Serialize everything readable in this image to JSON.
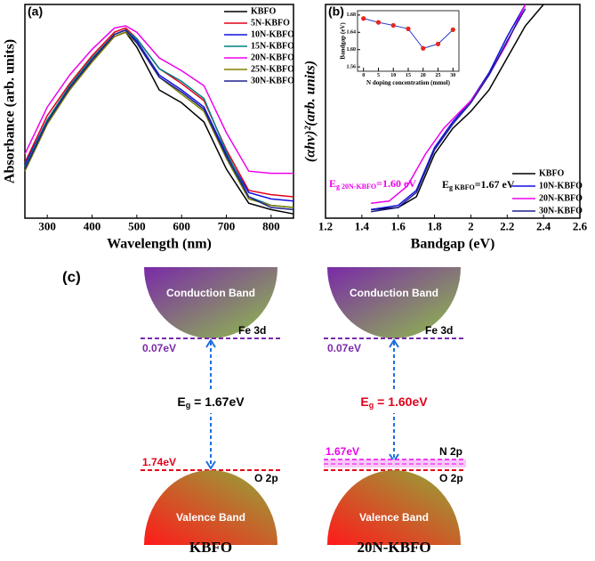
{
  "chart_data": [
    {
      "type": "line",
      "panel_label": "(a)",
      "xlabel": "Wavelength (nm)",
      "ylabel": "Absorbance (arb. units)",
      "xlim": [
        250,
        850
      ],
      "xticks": [
        300,
        400,
        500,
        600,
        700,
        800
      ],
      "ylim": [
        0,
        1
      ],
      "legend": "upper right",
      "x": [
        250,
        300,
        350,
        400,
        450,
        475,
        500,
        550,
        600,
        650,
        700,
        750,
        800,
        850
      ],
      "series": [
        {
          "name": "KBFO",
          "color": "#000000",
          "values": [
            0.23,
            0.45,
            0.6,
            0.74,
            0.85,
            0.87,
            0.8,
            0.6,
            0.54,
            0.45,
            0.23,
            0.07,
            0.04,
            0.02
          ]
        },
        {
          "name": "5N-KBFO",
          "color": "#e3001b",
          "values": [
            0.26,
            0.48,
            0.63,
            0.76,
            0.87,
            0.89,
            0.84,
            0.7,
            0.63,
            0.55,
            0.32,
            0.13,
            0.11,
            0.1
          ]
        },
        {
          "name": "10N-KBFO",
          "color": "#1010e0",
          "values": [
            0.25,
            0.46,
            0.61,
            0.74,
            0.86,
            0.88,
            0.83,
            0.67,
            0.6,
            0.52,
            0.3,
            0.12,
            0.09,
            0.08
          ]
        },
        {
          "name": "15N-KBFO",
          "color": "#008080",
          "values": [
            0.24,
            0.46,
            0.62,
            0.75,
            0.86,
            0.88,
            0.84,
            0.7,
            0.64,
            0.56,
            0.31,
            0.1,
            0.06,
            0.05
          ]
        },
        {
          "name": "20N-KBFO",
          "color": "#ee00ee",
          "values": [
            0.3,
            0.52,
            0.67,
            0.79,
            0.89,
            0.9,
            0.87,
            0.75,
            0.69,
            0.62,
            0.4,
            0.22,
            0.21,
            0.21
          ]
        },
        {
          "name": "25N-KBFO",
          "color": "#808000",
          "values": [
            0.22,
            0.44,
            0.6,
            0.73,
            0.85,
            0.87,
            0.82,
            0.66,
            0.58,
            0.5,
            0.28,
            0.09,
            0.06,
            0.05
          ]
        },
        {
          "name": "30N-KBFO",
          "color": "#20208f",
          "values": [
            0.23,
            0.45,
            0.61,
            0.74,
            0.86,
            0.88,
            0.82,
            0.66,
            0.59,
            0.51,
            0.29,
            0.1,
            0.05,
            0.04
          ]
        }
      ]
    },
    {
      "type": "line",
      "panel_label": "(b)",
      "xlabel": "Bandgap (eV)",
      "ylabel": "(αhν)²(arb. units)",
      "xlim": [
        1.2,
        2.6
      ],
      "xticks": [
        1.2,
        1.4,
        1.6,
        1.8,
        2.0,
        2.2,
        2.4,
        2.6
      ],
      "ylim": [
        0,
        1
      ],
      "legend": "lower right",
      "annotations": [
        {
          "main": "E",
          "sub": "g 20N-KBFO",
          "tail": "=1.60 eV",
          "color": "#ee00ee"
        },
        {
          "main": "E",
          "sub": "g KBFO",
          "tail": "=1.67 eV",
          "color": "#000000"
        }
      ],
      "series": [
        {
          "name": "KBFO",
          "color": "#000000",
          "x": [
            1.45,
            1.6,
            1.7,
            1.8,
            1.9,
            2.0,
            2.1,
            2.2,
            2.3,
            2.4
          ],
          "values": [
            0.04,
            0.05,
            0.1,
            0.3,
            0.42,
            0.5,
            0.6,
            0.75,
            0.9,
            1.0
          ]
        },
        {
          "name": "10N-KBFO",
          "color": "#1010e0",
          "x": [
            1.45,
            1.6,
            1.7,
            1.8,
            1.9,
            2.0,
            2.1,
            2.2,
            2.3
          ],
          "values": [
            0.04,
            0.06,
            0.13,
            0.33,
            0.45,
            0.55,
            0.68,
            0.85,
            1.0
          ]
        },
        {
          "name": "20N-KBFO",
          "color": "#ee00ee",
          "x": [
            1.45,
            1.55,
            1.65,
            1.75,
            1.85,
            2.0,
            2.1,
            2.2,
            2.3
          ],
          "values": [
            0.07,
            0.08,
            0.15,
            0.3,
            0.42,
            0.55,
            0.67,
            0.82,
            1.0
          ]
        },
        {
          "name": "30N-KBFO",
          "color": "#20208f",
          "x": [
            1.45,
            1.6,
            1.7,
            1.8,
            1.9,
            2.0,
            2.1,
            2.2,
            2.3
          ],
          "values": [
            0.03,
            0.05,
            0.12,
            0.32,
            0.44,
            0.54,
            0.67,
            0.83,
            0.98
          ]
        }
      ]
    },
    {
      "type": "scatter",
      "xlabel": "N doping concentration (mmol)",
      "ylabel": "Bandgap (eV)",
      "xlim": [
        -2,
        32
      ],
      "xticks": [
        0,
        5,
        10,
        15,
        20,
        25,
        30
      ],
      "ylim": [
        1.55,
        1.69
      ],
      "yticks": [
        {
          "value": 1.56,
          "label": "1.56"
        },
        {
          "value": 1.6,
          "label": "1.60"
        },
        {
          "value": 1.64,
          "label": "1.64"
        },
        {
          "value": 1.68,
          "label": "1.68"
        }
      ],
      "marker_color": "#e8261e",
      "line_color": "#2a3fd0",
      "x": [
        0,
        5,
        10,
        15,
        20,
        25,
        30
      ],
      "values": [
        1.672,
        1.663,
        1.656,
        1.648,
        1.603,
        1.613,
        1.646
      ]
    }
  ],
  "diagram": {
    "label": "(c)",
    "left": {
      "conduction": "Conduction Band",
      "fe": "Fe 3d",
      "gap": "0.07eV",
      "eg_main": "E",
      "eg_sub": "g",
      "eg_value": " = 1.67eV",
      "level": "1.74eV",
      "o": "O 2p",
      "valence": "Valence Band",
      "name": "KBFO"
    },
    "right": {
      "conduction": "Conduction Band",
      "fe": "Fe 3d",
      "gap": "0.07eV",
      "eg_main": "E",
      "eg_sub": "g",
      "eg_value": " = 1.60eV",
      "level": "1.67eV",
      "n": "N 2p",
      "o": "O 2p",
      "valence": "Valence Band",
      "name": "20N-KBFO"
    }
  }
}
